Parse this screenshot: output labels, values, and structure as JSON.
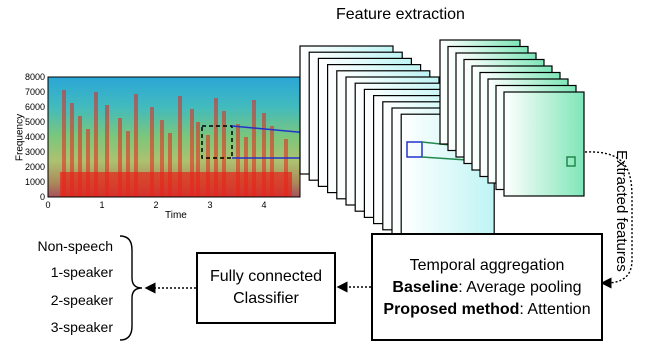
{
  "title": "Feature extraction",
  "spectrogram": {
    "ylabel": "Frequency",
    "xlabel": "Time",
    "yticks": [
      "8000",
      "7000",
      "6000",
      "5000",
      "4000",
      "3000",
      "2000",
      "1000",
      "0"
    ],
    "xticks": [
      "0",
      "1",
      "2",
      "3",
      "4"
    ]
  },
  "side_label": "Extracted features",
  "aggregation": {
    "title": "Temporal aggregation",
    "baseline_bold": "Baseline",
    "baseline_text": ": Average pooling",
    "proposed_bold": "Proposed method",
    "proposed_text": ": Attention"
  },
  "classifier": {
    "line1": "Fully connected",
    "line2": "Classifier"
  },
  "classes": [
    "Non-speech",
    "1-speaker",
    "2-speaker",
    "3-speaker"
  ],
  "colors": {
    "stack1": "#bff4f4",
    "stack2": "#7fe6b8",
    "spec_low": "#2aa7d8",
    "spec_high": "#e8231a"
  }
}
